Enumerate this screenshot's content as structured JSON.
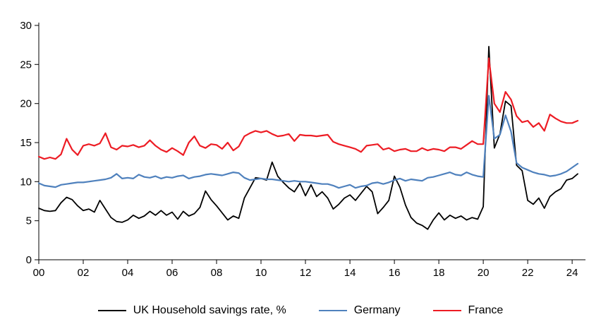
{
  "chart_data": {
    "type": "line",
    "title": "",
    "xlabel": "",
    "ylabel": "",
    "grid": false,
    "legend_position": "bottom",
    "ylim": [
      0,
      30
    ],
    "xlim": [
      2000,
      2024.6
    ],
    "y_ticks": [
      0,
      5,
      10,
      15,
      20,
      25,
      30
    ],
    "x_ticks": [
      2000,
      2002,
      2004,
      2006,
      2008,
      2010,
      2012,
      2014,
      2016,
      2018,
      2020,
      2022,
      2024
    ],
    "x_tick_labels": [
      "00",
      "02",
      "04",
      "06",
      "08",
      "10",
      "12",
      "14",
      "16",
      "18",
      "20",
      "22",
      "24"
    ],
    "x_start": 2000,
    "x_step": 0.25,
    "frequency": "quarterly",
    "series": [
      {
        "name": "UK Household savings rate, %",
        "color": "#000000",
        "stroke_width": 1.8,
        "values": [
          6.6,
          6.3,
          6.2,
          6.3,
          7.3,
          8.0,
          7.7,
          6.9,
          6.3,
          6.5,
          6.1,
          7.6,
          6.5,
          5.4,
          4.9,
          4.8,
          5.1,
          5.7,
          5.3,
          5.6,
          6.2,
          5.7,
          6.3,
          5.7,
          6.1,
          5.2,
          6.2,
          5.6,
          5.9,
          6.7,
          8.8,
          7.7,
          6.9,
          6.0,
          5.1,
          5.6,
          5.3,
          7.9,
          9.2,
          10.5,
          10.4,
          10.2,
          12.5,
          10.7,
          9.9,
          9.2,
          8.7,
          9.8,
          8.2,
          9.6,
          8.1,
          8.7,
          7.9,
          6.5,
          7.1,
          7.9,
          8.3,
          7.6,
          8.5,
          9.4,
          8.7,
          5.9,
          6.7,
          7.6,
          10.7,
          9.3,
          7.0,
          5.4,
          4.7,
          4.4,
          3.9,
          5.1,
          6.0,
          5.1,
          5.7,
          5.3,
          5.6,
          5.1,
          5.4,
          5.2,
          6.8,
          27.3,
          14.3,
          16.1,
          20.3,
          19.7,
          12.1,
          11.4,
          7.6,
          7.1,
          7.9,
          6.6,
          8.1,
          8.7,
          9.1,
          10.2,
          10.4,
          11.0
        ]
      },
      {
        "name": "Germany",
        "color": "#4f81bd",
        "stroke_width": 2.2,
        "values": [
          9.8,
          9.5,
          9.4,
          9.3,
          9.6,
          9.7,
          9.8,
          9.9,
          9.9,
          10.0,
          10.1,
          10.2,
          10.3,
          10.5,
          11.0,
          10.4,
          10.5,
          10.4,
          10.9,
          10.6,
          10.5,
          10.7,
          10.4,
          10.6,
          10.5,
          10.7,
          10.8,
          10.4,
          10.6,
          10.7,
          10.9,
          11.0,
          10.9,
          10.8,
          11.0,
          11.2,
          11.1,
          10.5,
          10.2,
          10.3,
          10.4,
          10.3,
          10.3,
          10.2,
          10.1,
          10.0,
          10.1,
          10.0,
          10.0,
          9.9,
          9.8,
          9.7,
          9.7,
          9.5,
          9.2,
          9.4,
          9.6,
          9.2,
          9.4,
          9.5,
          9.8,
          9.9,
          9.7,
          9.9,
          10.2,
          10.4,
          10.1,
          10.3,
          10.2,
          10.1,
          10.5,
          10.6,
          10.8,
          11.0,
          11.2,
          10.9,
          10.8,
          11.2,
          10.9,
          10.7,
          10.6,
          21.0,
          15.5,
          16.0,
          18.5,
          16.4,
          12.4,
          11.8,
          11.5,
          11.2,
          11.0,
          10.9,
          10.7,
          10.8,
          11.0,
          11.3,
          11.8,
          12.3
        ]
      },
      {
        "name": "France",
        "color": "#ed1c24",
        "stroke_width": 2.2,
        "values": [
          13.2,
          12.9,
          13.1,
          12.9,
          13.5,
          15.5,
          14.1,
          13.4,
          14.6,
          14.8,
          14.6,
          14.9,
          16.2,
          14.4,
          14.1,
          14.6,
          14.5,
          14.7,
          14.4,
          14.6,
          15.3,
          14.6,
          14.1,
          13.8,
          14.3,
          13.9,
          13.4,
          15.0,
          15.8,
          14.6,
          14.3,
          14.8,
          14.7,
          14.2,
          15.0,
          14.0,
          14.5,
          15.8,
          16.2,
          16.5,
          16.3,
          16.5,
          16.1,
          15.8,
          15.9,
          16.1,
          15.2,
          16.0,
          15.9,
          15.9,
          15.8,
          15.9,
          16.0,
          15.1,
          14.8,
          14.6,
          14.4,
          14.2,
          13.8,
          14.6,
          14.7,
          14.8,
          14.1,
          14.3,
          13.9,
          14.1,
          14.2,
          13.9,
          13.9,
          14.3,
          14.0,
          14.2,
          14.1,
          13.9,
          14.4,
          14.4,
          14.2,
          14.7,
          15.2,
          14.8,
          14.8,
          25.8,
          20.0,
          18.9,
          21.5,
          20.5,
          18.4,
          17.6,
          17.8,
          17.0,
          17.5,
          16.5,
          18.6,
          18.1,
          17.7,
          17.5,
          17.5,
          17.8
        ]
      }
    ]
  }
}
